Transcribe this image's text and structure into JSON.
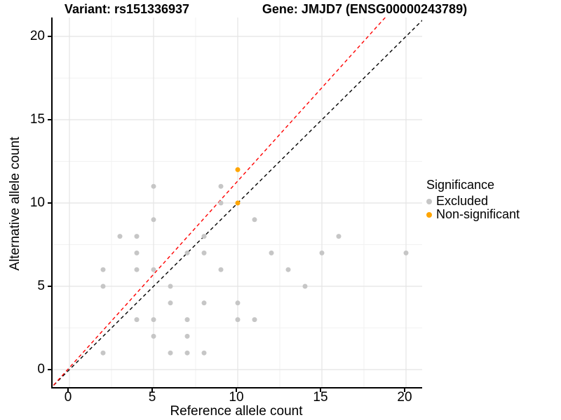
{
  "titles": {
    "left": "Variant: rs151336937",
    "right": "Gene: JMJD7 (ENSG00000243789)"
  },
  "chart_data": {
    "type": "scatter",
    "xlabel": "Reference allele count",
    "ylabel": "Alternative allele count",
    "xlim": [
      -1,
      21
    ],
    "ylim": [
      -1,
      21
    ],
    "x_ticks": [
      0,
      5,
      10,
      15,
      20
    ],
    "y_ticks": [
      0,
      5,
      10,
      15,
      20
    ],
    "minor_ticks": [
      2.5,
      7.5,
      12.5,
      17.5
    ],
    "grid": "major+minor",
    "colors": {
      "excluded": "#c6c6c6",
      "non_significant": "#FFA500",
      "identity_line": "#000000",
      "expected_line": "#FF0000",
      "major_grid": "#e4e4e4",
      "minor_grid": "#f2f2f2"
    },
    "legend": {
      "title": "Significance",
      "position": "right",
      "entries": [
        {
          "label": "Excluded",
          "color": "#c6c6c6"
        },
        {
          "label": "Non-significant",
          "color": "#FFA500"
        }
      ]
    },
    "series": [
      {
        "name": "Excluded",
        "color": "#c6c6c6",
        "points": [
          [
            2,
            1
          ],
          [
            2,
            5
          ],
          [
            2,
            6
          ],
          [
            3,
            8
          ],
          [
            4,
            3
          ],
          [
            4,
            6
          ],
          [
            4,
            7
          ],
          [
            4,
            8
          ],
          [
            5,
            2
          ],
          [
            5,
            3
          ],
          [
            5,
            6
          ],
          [
            5,
            9
          ],
          [
            5,
            11
          ],
          [
            6,
            1
          ],
          [
            6,
            4
          ],
          [
            6,
            5
          ],
          [
            7,
            1
          ],
          [
            7,
            2
          ],
          [
            7,
            3
          ],
          [
            7,
            7
          ],
          [
            8,
            1
          ],
          [
            8,
            4
          ],
          [
            8,
            7
          ],
          [
            8,
            8
          ],
          [
            9,
            6
          ],
          [
            9,
            10
          ],
          [
            9,
            11
          ],
          [
            10,
            3
          ],
          [
            10,
            4
          ],
          [
            11,
            3
          ],
          [
            11,
            9
          ],
          [
            12,
            7
          ],
          [
            13,
            6
          ],
          [
            14,
            5
          ],
          [
            15,
            7
          ],
          [
            16,
            8
          ],
          [
            20,
            7
          ]
        ]
      },
      {
        "name": "Non-significant",
        "color": "#FFA500",
        "points": [
          [
            10,
            10
          ],
          [
            10,
            12
          ]
        ]
      }
    ],
    "lines": [
      {
        "name": "identity-line",
        "color": "#000000",
        "style": "dashed",
        "slope": 1.0,
        "intercept": 0.0
      },
      {
        "name": "expected-line",
        "color": "#FF0000",
        "style": "dashed",
        "slope": 1.12,
        "intercept": 0.12
      }
    ]
  }
}
